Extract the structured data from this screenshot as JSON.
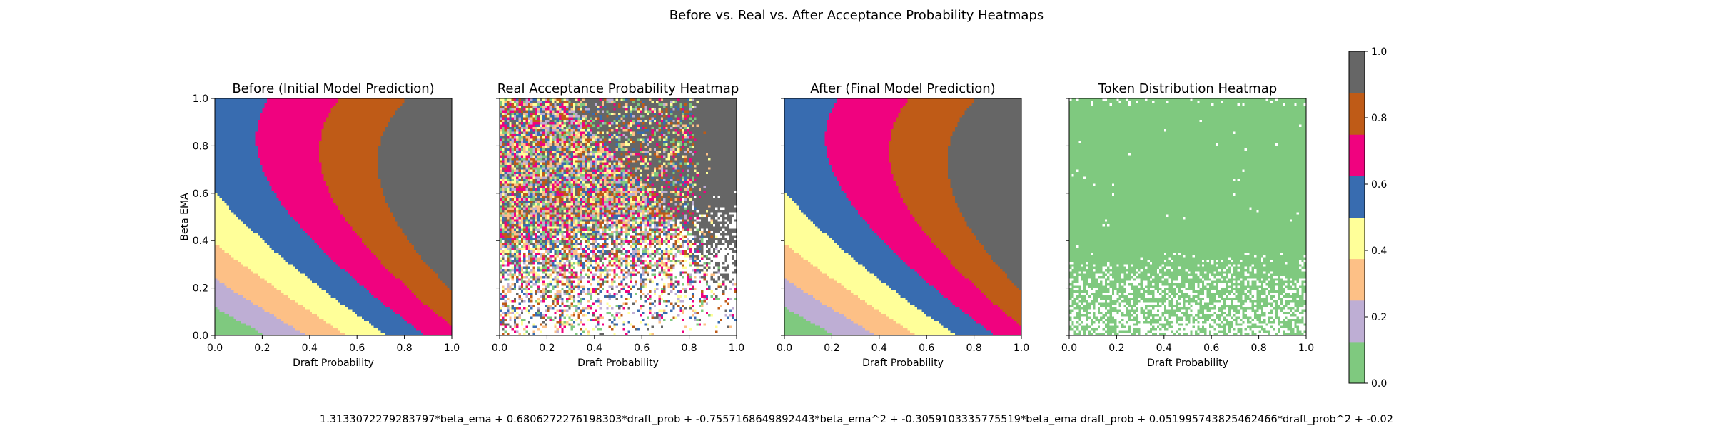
{
  "suptitle": "Before vs. Real vs. After Acceptance Probability Heatmaps",
  "formula": "1.3133072279283797*beta_ema + 0.6806272276198303*draft_prob + -0.7557168649892443*beta_ema^2 + -0.3059103335775519*beta_ema draft_prob + 0.051995743825462466*draft_prob^2 + -0.02",
  "colors": {
    "bins": [
      "#7fc97f",
      "#beaed4",
      "#fdc086",
      "#ffff99",
      "#386cb0",
      "#f0027f",
      "#bf5b17",
      "#666666"
    ],
    "token_fill": "#7fc97f",
    "missing": "#ffffff"
  },
  "chart_data": [
    {
      "type": "heatmap",
      "title": "Before (Initial Model Prediction)",
      "xlabel": "Draft Probability",
      "ylabel": "Beta EMA",
      "xlim": [
        0,
        1
      ],
      "ylim": [
        0,
        1
      ],
      "xticks": [
        "0.0",
        "0.2",
        "0.4",
        "0.6",
        "0.8",
        "1.0"
      ],
      "yticks": [
        "0.0",
        "0.2",
        "0.4",
        "0.6",
        "0.8",
        "1.0"
      ],
      "value_range": [
        0,
        1
      ],
      "model": "poly2",
      "coefficients": {
        "beta_ema": 1.3133,
        "draft_prob": 0.6806,
        "beta_ema^2": -0.7557,
        "beta_ema draft_prob": -0.3059,
        "draft_prob^2": 0.052,
        "const": -0.02
      },
      "grid": false
    },
    {
      "type": "heatmap",
      "title": "Real Acceptance Probability Heatmap",
      "xlabel": "Draft Probability",
      "ylabel": "",
      "xlim": [
        0,
        1
      ],
      "ylim": [
        0,
        1
      ],
      "xticks": [
        "0.0",
        "0.2",
        "0.4",
        "0.6",
        "0.8",
        "1.0"
      ],
      "value_range": [
        0,
        1
      ],
      "model": "empirical_noisy",
      "description_of_pattern": "noisy per-cell acceptance rates; fully dark grey (1.0) at high draft probability and high beta, sparse empty cells at low beta",
      "grid": false
    },
    {
      "type": "heatmap",
      "title": "After (Final Model Prediction)",
      "xlabel": "Draft Probability",
      "ylabel": "",
      "xlim": [
        0,
        1
      ],
      "ylim": [
        0,
        1
      ],
      "xticks": [
        "0.0",
        "0.2",
        "0.4",
        "0.6",
        "0.8",
        "1.0"
      ],
      "value_range": [
        0,
        1
      ],
      "model": "poly2",
      "coefficients": {
        "beta_ema": 1.3133,
        "draft_prob": 0.6806,
        "beta_ema^2": -0.7557,
        "beta_ema draft_prob": -0.3059,
        "draft_prob^2": 0.052,
        "const": -0.02
      },
      "grid": false
    },
    {
      "type": "heatmap",
      "title": "Token Distribution Heatmap",
      "xlabel": "Draft Probability",
      "ylabel": "",
      "xlim": [
        0,
        1
      ],
      "ylim": [
        0,
        1
      ],
      "xticks": [
        "0.0",
        "0.2",
        "0.4",
        "0.6",
        "0.8",
        "1.0"
      ],
      "model": "token_presence",
      "grid": false
    },
    {
      "type": "colorbar",
      "range": [
        0,
        1
      ],
      "ticks": [
        "0.0",
        "0.2",
        "0.4",
        "0.6",
        "0.8",
        "1.0"
      ],
      "bins": 8
    }
  ]
}
